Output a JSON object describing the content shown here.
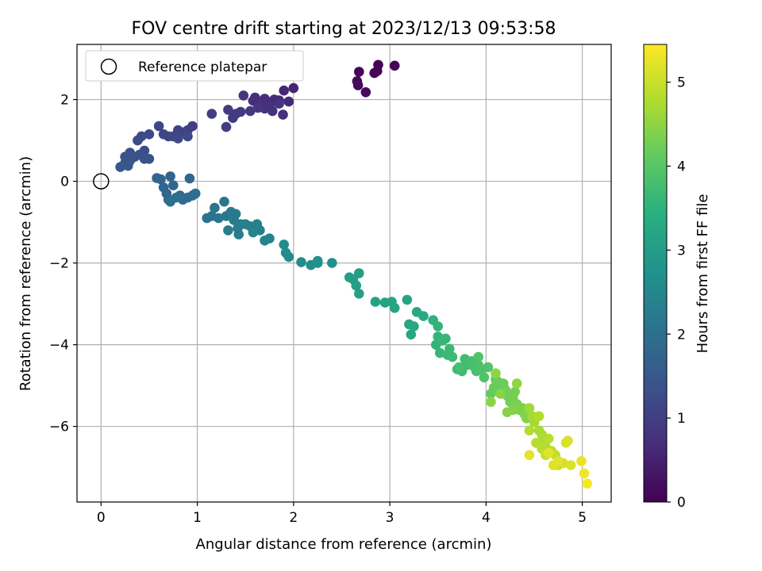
{
  "chart_data": {
    "type": "scatter",
    "title": "FOV centre drift starting at 2023/12/13 09:53:58",
    "xlabel": "Angular distance from reference (arcmin)",
    "ylabel": "Rotation from reference (arcmin)",
    "xlim": [
      -0.25,
      5.3
    ],
    "ylim": [
      -7.85,
      3.35
    ],
    "xticks": [
      0,
      1,
      2,
      3,
      4,
      5
    ],
    "xtick_labels": [
      "0",
      "1",
      "2",
      "3",
      "4",
      "5"
    ],
    "yticks": [
      2,
      0,
      -2,
      -4,
      -6
    ],
    "ytick_labels": [
      "2",
      "0",
      "−2",
      "−4",
      "−6"
    ],
    "grid": true,
    "legend": {
      "location": "top-left",
      "entries": [
        "Reference platepar"
      ]
    },
    "reference_point": {
      "x": 0,
      "y": 0,
      "label": "Reference platepar"
    },
    "colorbar": {
      "label": "Hours from first FF file",
      "colormap": "viridis",
      "range": [
        0,
        5.45
      ],
      "ticks": [
        0,
        1,
        2,
        3,
        4,
        5
      ],
      "tick_labels": [
        "0",
        "1",
        "2",
        "3",
        "4",
        "5"
      ]
    },
    "series": [
      {
        "values_note": "",
        "points": [
          [
            2.88,
            2.85,
            0.02
          ],
          [
            3.05,
            2.83,
            0.03
          ],
          [
            2.68,
            2.68,
            0.06
          ],
          [
            2.87,
            2.7,
            0.08
          ],
          [
            2.84,
            2.65,
            0.1
          ],
          [
            2.66,
            2.45,
            0.12
          ],
          [
            2.67,
            2.35,
            0.14
          ],
          [
            2.75,
            2.18,
            0.16
          ],
          [
            2.0,
            2.28,
            0.55
          ],
          [
            1.9,
            2.22,
            0.58
          ],
          [
            1.95,
            1.95,
            0.6
          ],
          [
            1.85,
            1.98,
            0.62
          ],
          [
            1.8,
            2.0,
            0.64
          ],
          [
            1.7,
            2.02,
            0.66
          ],
          [
            1.6,
            2.05,
            0.68
          ],
          [
            1.58,
            1.97,
            0.7
          ],
          [
            1.65,
            1.9,
            0.72
          ],
          [
            1.75,
            1.85,
            0.74
          ],
          [
            1.7,
            1.78,
            0.76
          ],
          [
            1.78,
            1.72,
            0.78
          ],
          [
            1.89,
            1.63,
            0.8
          ],
          [
            1.85,
            1.9,
            0.82
          ],
          [
            1.63,
            1.8,
            0.84
          ],
          [
            1.55,
            1.72,
            0.86
          ],
          [
            1.48,
            2.1,
            0.88
          ],
          [
            1.45,
            1.7,
            0.9
          ],
          [
            1.37,
            1.55,
            0.92
          ],
          [
            1.4,
            1.65,
            0.94
          ],
          [
            1.32,
            1.75,
            0.96
          ],
          [
            1.3,
            1.33,
            0.98
          ],
          [
            1.15,
            1.65,
            1.0
          ],
          [
            0.95,
            1.35,
            1.02
          ],
          [
            0.9,
            1.25,
            1.04
          ],
          [
            0.85,
            1.2,
            1.06
          ],
          [
            0.8,
            1.25,
            1.08
          ],
          [
            0.75,
            1.1,
            1.1
          ],
          [
            0.7,
            1.1,
            1.12
          ],
          [
            0.65,
            1.15,
            1.14
          ],
          [
            0.6,
            1.35,
            1.16
          ],
          [
            0.9,
            1.1,
            1.18
          ],
          [
            0.8,
            1.05,
            1.2
          ],
          [
            0.5,
            1.15,
            1.22
          ],
          [
            0.42,
            1.1,
            1.24
          ],
          [
            0.38,
            1.0,
            1.26
          ],
          [
            0.45,
            0.75,
            1.28
          ],
          [
            0.4,
            0.65,
            1.3
          ],
          [
            0.35,
            0.6,
            1.32
          ],
          [
            0.3,
            0.7,
            1.34
          ],
          [
            0.25,
            0.6,
            1.36
          ],
          [
            0.5,
            0.55,
            1.38
          ],
          [
            0.45,
            0.55,
            1.4
          ],
          [
            0.3,
            0.5,
            1.42
          ],
          [
            0.25,
            0.45,
            1.44
          ],
          [
            0.2,
            0.35,
            1.46
          ],
          [
            0.28,
            0.38,
            1.48
          ],
          [
            0.58,
            0.08,
            1.72
          ],
          [
            0.62,
            0.05,
            1.74
          ],
          [
            0.72,
            0.12,
            1.76
          ],
          [
            0.92,
            0.07,
            1.78
          ],
          [
            0.75,
            -0.1,
            1.8
          ],
          [
            0.65,
            -0.15,
            1.82
          ],
          [
            0.68,
            -0.3,
            1.84
          ],
          [
            0.7,
            -0.45,
            1.86
          ],
          [
            0.82,
            -0.35,
            1.88
          ],
          [
            0.85,
            -0.45,
            1.9
          ],
          [
            0.9,
            -0.4,
            1.92
          ],
          [
            0.95,
            -0.35,
            1.94
          ],
          [
            0.98,
            -0.3,
            1.96
          ],
          [
            0.78,
            -0.4,
            1.98
          ],
          [
            0.72,
            -0.5,
            2.0
          ],
          [
            1.1,
            -0.9,
            2.05
          ],
          [
            1.15,
            -0.85,
            2.08
          ],
          [
            1.18,
            -0.65,
            2.1
          ],
          [
            1.22,
            -0.9,
            2.12
          ],
          [
            1.28,
            -0.5,
            2.14
          ],
          [
            1.3,
            -0.85,
            2.16
          ],
          [
            1.35,
            -0.75,
            2.18
          ],
          [
            1.4,
            -0.8,
            2.2
          ],
          [
            1.38,
            -0.95,
            2.22
          ],
          [
            1.32,
            -1.2,
            2.24
          ],
          [
            1.42,
            -1.15,
            2.26
          ],
          [
            1.45,
            -1.05,
            2.28
          ],
          [
            1.43,
            -1.3,
            2.3
          ],
          [
            1.5,
            -1.05,
            2.32
          ],
          [
            1.55,
            -1.1,
            2.34
          ],
          [
            1.62,
            -1.05,
            2.36
          ],
          [
            1.65,
            -1.2,
            2.38
          ],
          [
            1.7,
            -1.45,
            2.4
          ],
          [
            1.75,
            -1.4,
            2.42
          ],
          [
            1.58,
            -1.25,
            2.44
          ],
          [
            1.9,
            -1.55,
            2.6
          ],
          [
            1.92,
            -1.75,
            2.62
          ],
          [
            1.95,
            -1.85,
            2.64
          ],
          [
            2.08,
            -1.98,
            2.66
          ],
          [
            2.18,
            -2.05,
            2.68
          ],
          [
            2.25,
            -2.0,
            2.7
          ],
          [
            2.25,
            -1.95,
            2.72
          ],
          [
            2.4,
            -2.0,
            2.74
          ],
          [
            2.58,
            -2.35,
            3.0
          ],
          [
            2.62,
            -2.4,
            3.02
          ],
          [
            2.68,
            -2.25,
            3.04
          ],
          [
            2.65,
            -2.55,
            3.06
          ],
          [
            2.68,
            -2.75,
            3.08
          ],
          [
            2.85,
            -2.95,
            3.12
          ],
          [
            2.95,
            -2.97,
            3.14
          ],
          [
            3.02,
            -2.95,
            3.16
          ],
          [
            3.05,
            -3.1,
            3.18
          ],
          [
            3.18,
            -2.9,
            3.2
          ],
          [
            3.2,
            -3.5,
            3.22
          ],
          [
            3.22,
            -3.75,
            3.24
          ],
          [
            3.25,
            -3.55,
            3.26
          ],
          [
            3.28,
            -3.2,
            3.28
          ],
          [
            3.35,
            -3.3,
            3.3
          ],
          [
            3.45,
            -3.4,
            3.5
          ],
          [
            3.5,
            -3.55,
            3.52
          ],
          [
            3.48,
            -4.0,
            3.54
          ],
          [
            3.5,
            -3.8,
            3.56
          ],
          [
            3.55,
            -3.9,
            3.58
          ],
          [
            3.58,
            -3.85,
            3.6
          ],
          [
            3.52,
            -4.2,
            3.62
          ],
          [
            3.62,
            -4.1,
            3.64
          ],
          [
            3.6,
            -4.25,
            3.66
          ],
          [
            3.65,
            -4.3,
            3.68
          ],
          [
            3.7,
            -4.6,
            3.7
          ],
          [
            3.75,
            -4.65,
            3.72
          ],
          [
            3.78,
            -4.35,
            3.74
          ],
          [
            3.8,
            -4.5,
            3.76
          ],
          [
            3.72,
            -4.55,
            3.78
          ],
          [
            3.85,
            -4.4,
            3.8
          ],
          [
            3.88,
            -4.55,
            3.82
          ],
          [
            3.9,
            -4.65,
            3.84
          ],
          [
            3.92,
            -4.5,
            3.86
          ],
          [
            3.95,
            -4.6,
            3.88
          ],
          [
            3.98,
            -4.8,
            3.9
          ],
          [
            3.92,
            -4.3,
            3.92
          ],
          [
            4.02,
            -4.55,
            3.94
          ],
          [
            4.1,
            -4.85,
            4.1
          ],
          [
            4.15,
            -5.0,
            4.12
          ],
          [
            4.05,
            -5.2,
            4.14
          ],
          [
            4.08,
            -5.05,
            4.16
          ],
          [
            4.12,
            -4.9,
            4.18
          ],
          [
            4.18,
            -4.95,
            4.2
          ],
          [
            4.2,
            -5.1,
            4.22
          ],
          [
            4.22,
            -5.25,
            4.24
          ],
          [
            4.25,
            -5.4,
            4.26
          ],
          [
            4.28,
            -5.3,
            4.28
          ],
          [
            4.3,
            -5.15,
            4.3
          ],
          [
            4.32,
            -5.45,
            4.32
          ],
          [
            4.35,
            -5.6,
            4.34
          ],
          [
            4.38,
            -5.55,
            4.36
          ],
          [
            4.4,
            -5.7,
            4.38
          ],
          [
            4.42,
            -5.8,
            4.4
          ],
          [
            4.28,
            -5.6,
            4.42
          ],
          [
            4.22,
            -5.65,
            4.44
          ],
          [
            4.15,
            -5.2,
            4.46
          ],
          [
            4.05,
            -5.4,
            4.48
          ],
          [
            4.1,
            -4.7,
            4.5
          ],
          [
            4.32,
            -4.95,
            4.52
          ],
          [
            4.45,
            -5.55,
            4.65
          ],
          [
            4.48,
            -5.75,
            4.68
          ],
          [
            4.5,
            -5.9,
            4.7
          ],
          [
            4.55,
            -6.1,
            4.72
          ],
          [
            4.58,
            -6.2,
            4.74
          ],
          [
            4.6,
            -6.35,
            4.76
          ],
          [
            4.62,
            -6.5,
            4.78
          ],
          [
            4.55,
            -5.75,
            4.8
          ],
          [
            4.45,
            -6.1,
            4.82
          ],
          [
            4.52,
            -6.4,
            4.84
          ],
          [
            4.58,
            -6.55,
            4.86
          ],
          [
            4.65,
            -6.3,
            4.88
          ],
          [
            4.68,
            -6.6,
            4.9
          ],
          [
            4.72,
            -6.7,
            4.92
          ],
          [
            4.62,
            -6.7,
            4.94
          ],
          [
            4.75,
            -6.95,
            4.96
          ],
          [
            4.8,
            -6.9,
            5.1
          ],
          [
            4.83,
            -6.4,
            5.12
          ],
          [
            4.85,
            -6.35,
            5.14
          ],
          [
            4.88,
            -6.95,
            5.16
          ],
          [
            4.7,
            -6.95,
            5.18
          ],
          [
            4.75,
            -6.85,
            5.2
          ],
          [
            4.65,
            -6.65,
            5.22
          ],
          [
            4.45,
            -6.7,
            5.24
          ],
          [
            4.99,
            -6.85,
            5.28
          ],
          [
            5.02,
            -7.15,
            5.35
          ],
          [
            5.05,
            -7.4,
            5.42
          ]
        ]
      }
    ]
  }
}
